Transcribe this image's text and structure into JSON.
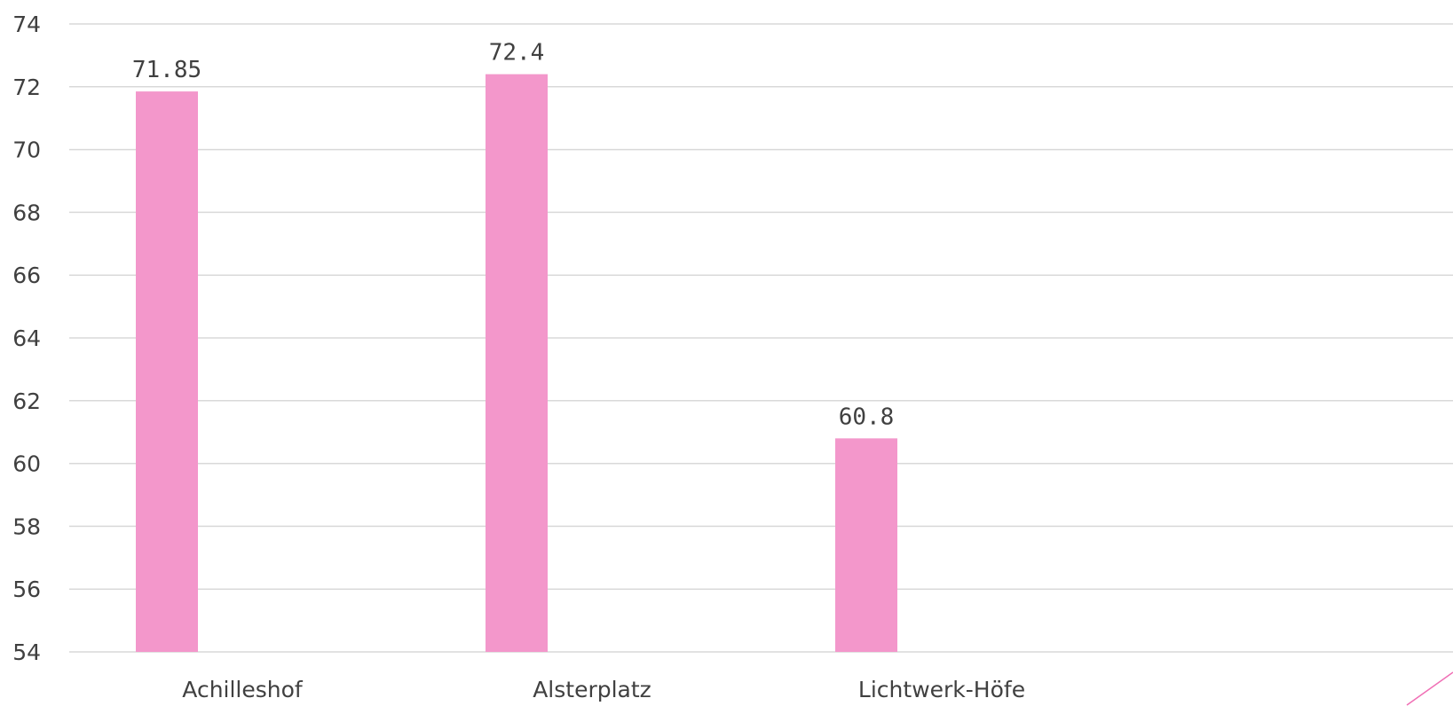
{
  "chart_data": {
    "type": "bar",
    "categories": [
      "Achilleshof",
      "Alsterplatz",
      "Lichtwerk-Höfe"
    ],
    "values": [
      71.85,
      72.4,
      60.8
    ],
    "data_labels": [
      "71.85",
      "72.4",
      "60.8"
    ],
    "ylim": [
      54,
      74
    ],
    "yticks": [
      54,
      56,
      58,
      60,
      62,
      64,
      66,
      68,
      70,
      72,
      74
    ],
    "grid": true,
    "legend": "none",
    "bar_color": "#f397cb",
    "accent_color": "#f06fb5"
  }
}
